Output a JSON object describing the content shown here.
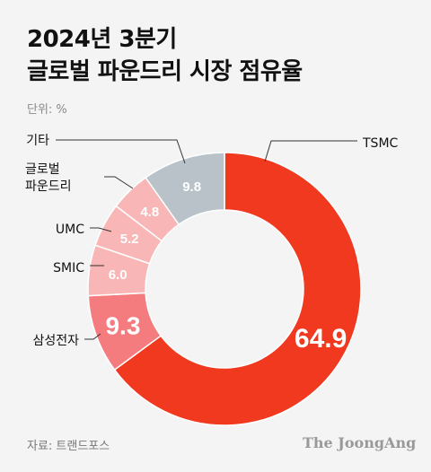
{
  "header": {
    "title_line1": "2024년 3분기",
    "title_line2": "글로벌 파운드리 시장 점유율",
    "unit": "단위: %"
  },
  "footer": {
    "source": "자료: 트랜드포스",
    "brand": "The JoongAng"
  },
  "colors": {
    "tsmc": "#f0391e",
    "samsung": "#f47c7f",
    "smic": "#f9b6b6",
    "umc": "#f9b6b6",
    "global": "#f9b6b6",
    "other": "#b8c2c8"
  },
  "chart_data": {
    "type": "pie",
    "donut": true,
    "title": "2024년 3분기 글로벌 파운드리 시장 점유율",
    "unit": "%",
    "slices": [
      {
        "label": "TSMC",
        "value": 64.9,
        "display": "64.9",
        "color": "#f0391e"
      },
      {
        "label": "삼성전자",
        "value": 9.3,
        "display": "9.3",
        "color": "#f47c7f"
      },
      {
        "label": "SMIC",
        "value": 6.0,
        "display": "6.0",
        "color": "#f9b6b6"
      },
      {
        "label": "UMC",
        "value": 5.2,
        "display": "5.2",
        "color": "#f9b6b6"
      },
      {
        "label": "글로벌\n파운드리",
        "value": 4.8,
        "display": "4.8",
        "color": "#f9b6b6"
      },
      {
        "label": "기타",
        "value": 9.8,
        "display": "9.8",
        "color": "#b8c2c8"
      }
    ]
  }
}
